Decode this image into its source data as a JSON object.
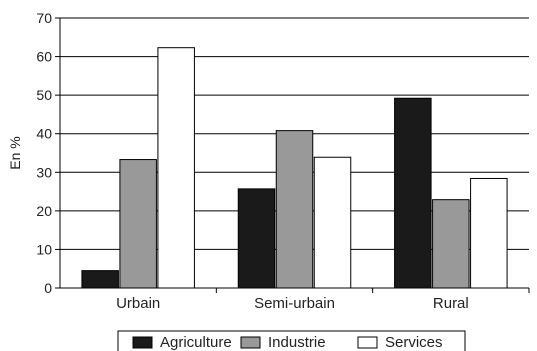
{
  "chart_data": {
    "type": "bar",
    "title": "",
    "xlabel": "",
    "ylabel": "En %",
    "ylim": [
      0,
      70
    ],
    "yticks": [
      0,
      10,
      20,
      30,
      40,
      50,
      60,
      70
    ],
    "grid": true,
    "legend_position": "bottom",
    "categories": [
      "Urbain",
      "Semi-urbain",
      "Rural"
    ],
    "series": [
      {
        "name": "Agriculture",
        "values": [
          4.5,
          25.7,
          49.2
        ],
        "color": "#1a1a1a"
      },
      {
        "name": "Industrie",
        "values": [
          33.3,
          40.8,
          22.9
        ],
        "color": "#999999"
      },
      {
        "name": "Services",
        "values": [
          62.3,
          33.9,
          28.4
        ],
        "color": "#ffffff"
      }
    ]
  }
}
